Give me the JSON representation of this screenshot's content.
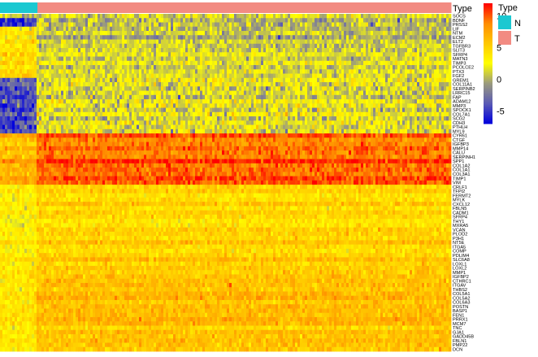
{
  "chart_data": {
    "type": "heatmap",
    "annotation": {
      "title": "Type",
      "groups": [
        {
          "label": "N",
          "color": "#1BC8D1",
          "fraction": 0.083
        },
        {
          "label": "T",
          "color": "#F28B82",
          "fraction": 0.917
        }
      ]
    },
    "legend": {
      "ticks": [
        10,
        5,
        0,
        -5
      ],
      "range": [
        -7,
        12
      ],
      "colors": [
        "#0000DD",
        "#5A5AB4",
        "#9A9A7E",
        "#FFFF00",
        "#FFC800",
        "#FF8C00",
        "#FF0000"
      ],
      "placement": "right"
    },
    "genes": [
      "SOCS",
      "BDNF",
      "PRSS2",
      "LIF",
      "NTM",
      "ECM2",
      "ELT2",
      "TGFBR3",
      "SLIT3",
      "SFRP4",
      "MATN3",
      "TIMP3",
      "PCOLCE2",
      "PTX3",
      "FGF2",
      "GREM1",
      "COL11A1",
      "SERPINB2",
      "LRRC15",
      "FAP",
      "ADAM12",
      "MMP3",
      "SPOCK1",
      "COL7A1",
      "SCG2",
      "CDH3",
      "PTHLH",
      "MYL9",
      "CYR61",
      "CTGF",
      "IGFBP3",
      "MMP14",
      "CALU",
      "SERPINH1",
      "SPP1",
      "COL1A2",
      "COL1A1",
      "COL3A1",
      "TIMP1",
      "VIM",
      "CRLF1",
      "TFPI2",
      "FERMT2",
      "MYLK",
      "CXCL12",
      "FBLN5",
      "CADM1",
      "SFRP4",
      "THY1",
      "MXRA5",
      "VCAN",
      "PLOD2",
      "P3H1",
      "NT5E",
      "ITGA5",
      "COMP",
      "PDLIM4",
      "SLC6A8",
      "LOXL1",
      "LOXL2",
      "MMP1",
      "IGFBP2",
      "CTHRC1",
      "ITGAV",
      "THBS2",
      "COL5A1",
      "COL5A2",
      "COL6A3",
      "POSTN",
      "BASP1",
      "FEN1",
      "PRRX1",
      "MCM7",
      "TNC",
      "GJA1",
      "GADD45B",
      "FBLN1",
      "PMP22",
      "DCN"
    ],
    "row_blocks": [
      {
        "n": 1,
        "nMean": 1,
        "tMean": 1.5,
        "sd": 1.4
      },
      {
        "n": 2,
        "nMean": -6,
        "tMean": -0.5,
        "sd": 1.5
      },
      {
        "n": 12,
        "nMean": 4.5,
        "tMean": 1.2,
        "sd": 1.2
      },
      {
        "n": 13,
        "nMean": -4.5,
        "tMean": 1.5,
        "sd": 1.6
      },
      {
        "n": 12,
        "nMean": 6.5,
        "tMean": 9.5,
        "sd": 1.0
      },
      {
        "n": 21,
        "nMean": 3.5,
        "tMean": 5.0,
        "sd": 1.0
      },
      {
        "n": 18,
        "nMean": 4.0,
        "tMean": 6.2,
        "sd": 1.0
      }
    ]
  }
}
